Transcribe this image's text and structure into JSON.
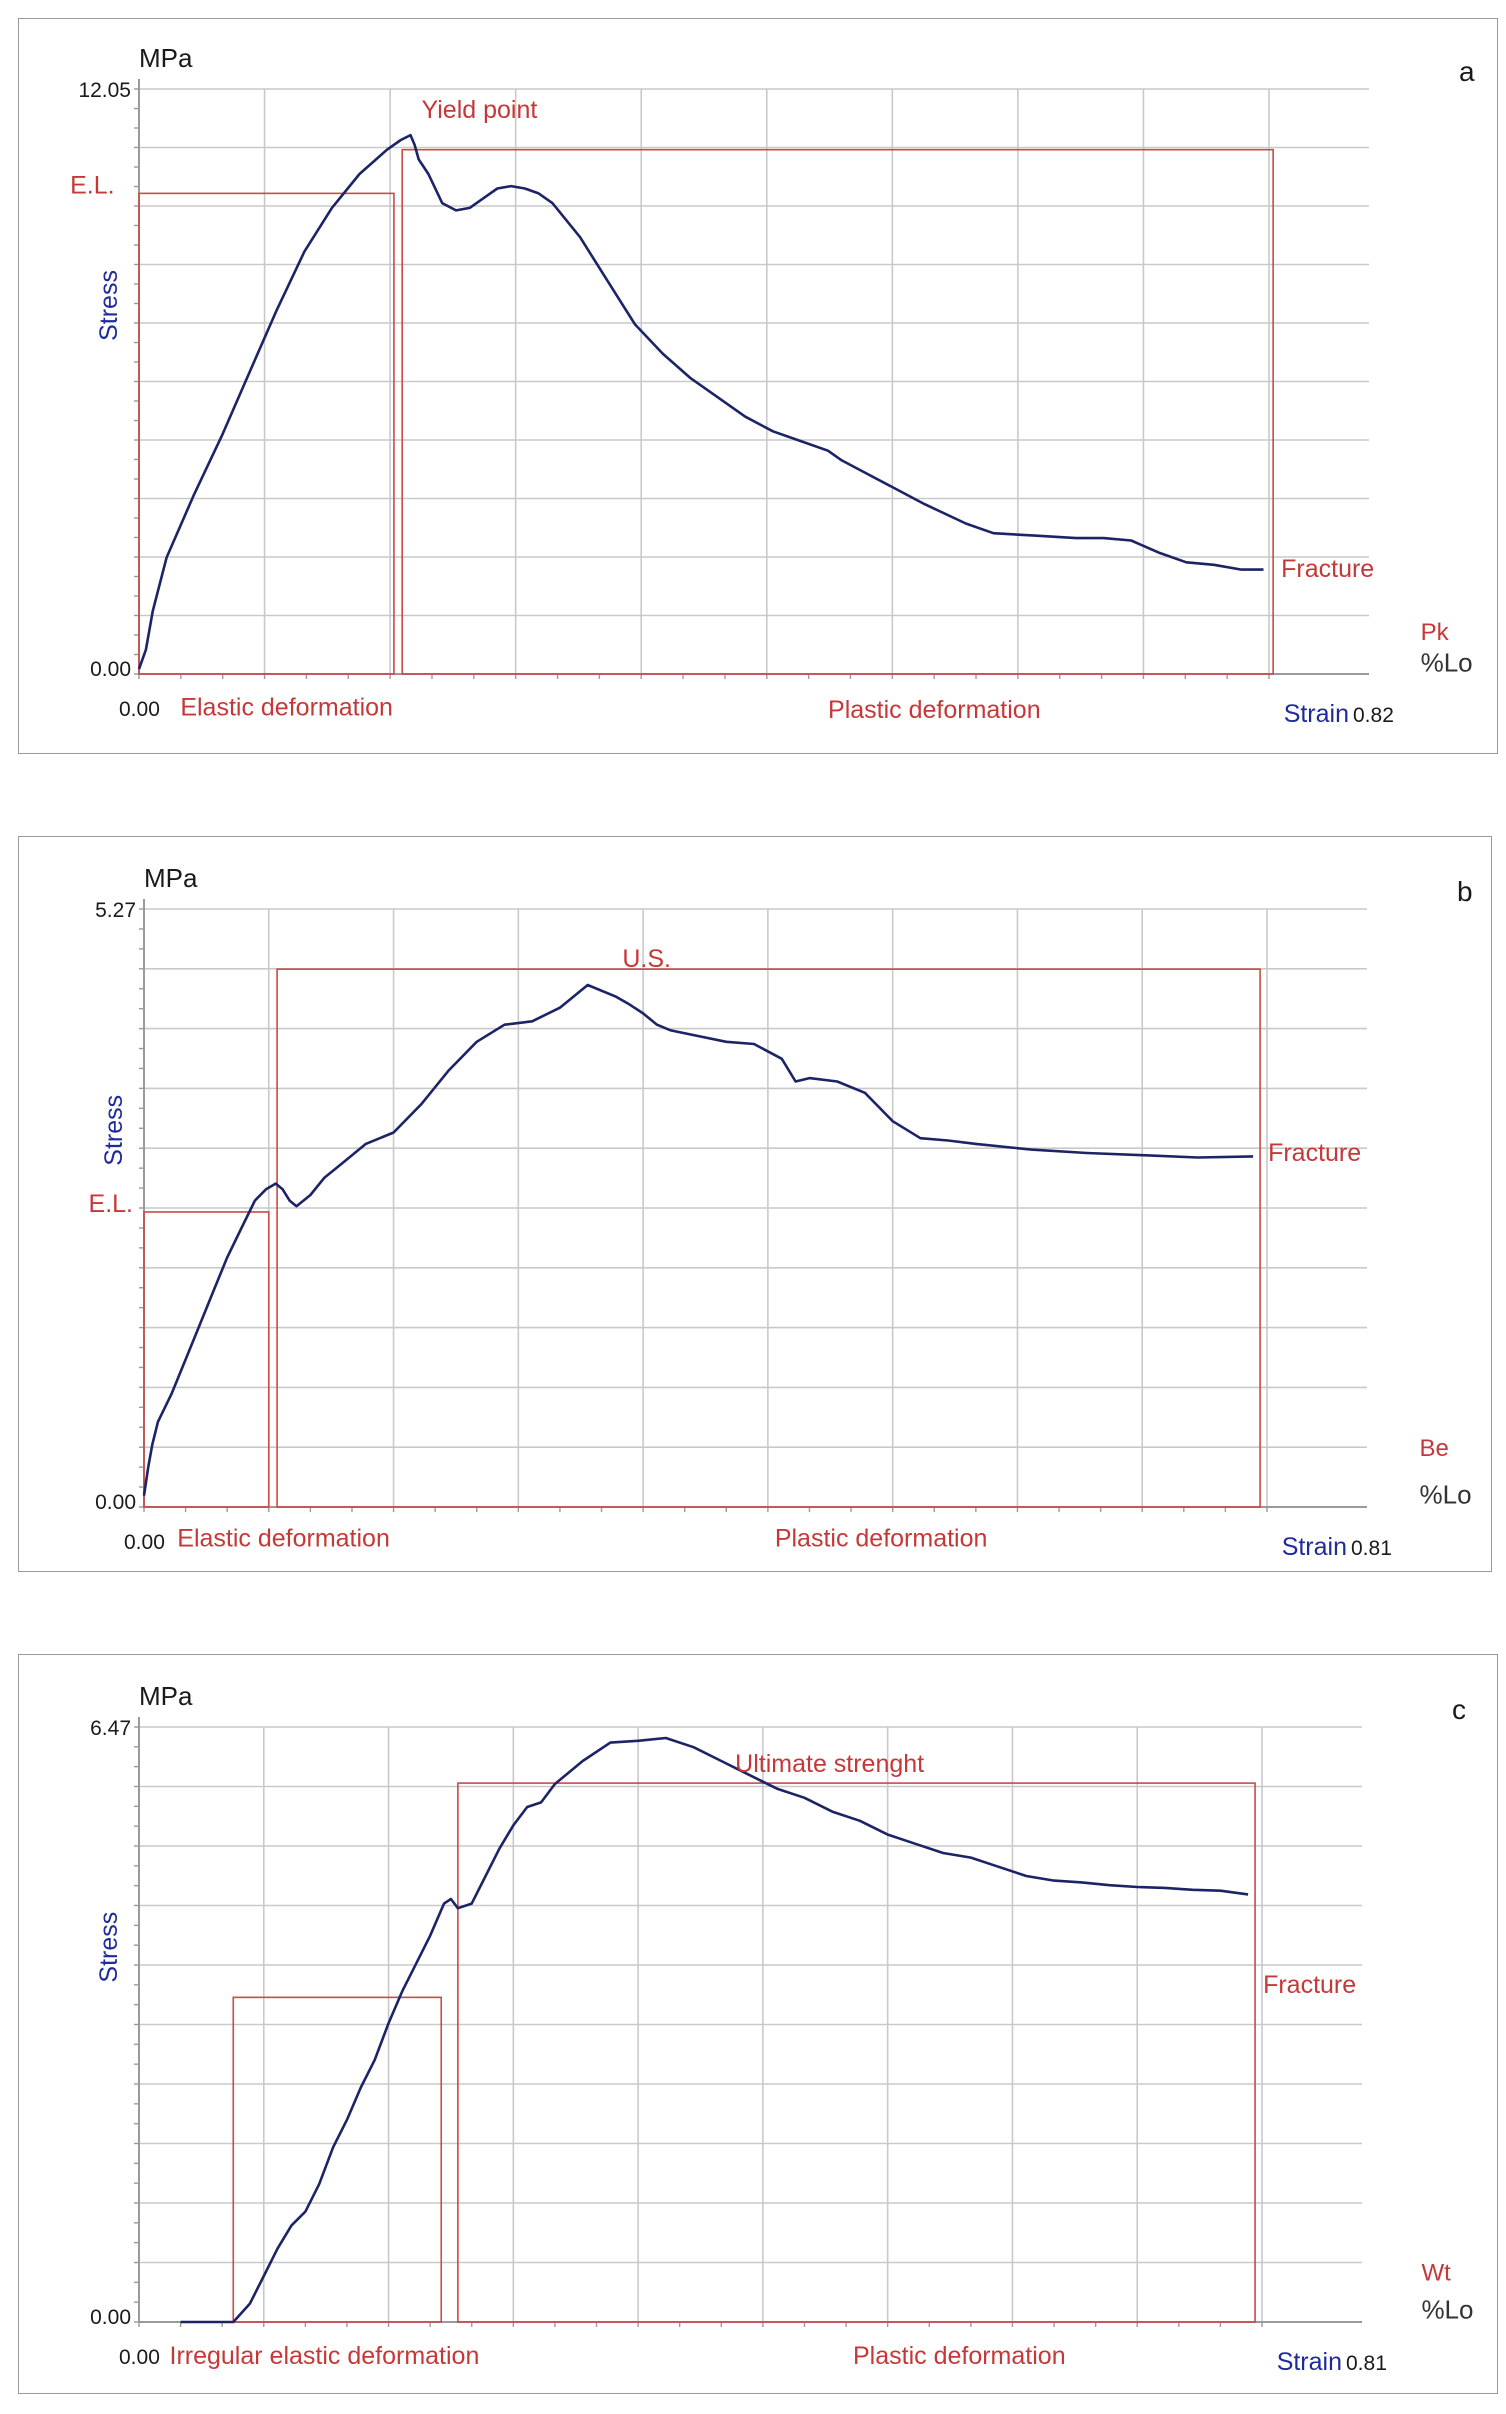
{
  "chart_data": [
    {
      "type": "line",
      "panel_label": "a",
      "unit_label": "MPa",
      "ylabel": "Stress",
      "xlabel": "Strain",
      "x_unit": "%Lo",
      "ylim": [
        0.0,
        12.05
      ],
      "xlim": [
        0.0,
        0.82
      ],
      "y_tick_labels": [
        "12.05",
        "0.00"
      ],
      "x_tick_labels": [
        "0.00",
        "0.82"
      ],
      "specimen_label": "Pk",
      "annotations": {
        "yield": "Yield point",
        "el": "E.L.",
        "fracture": "Fracture",
        "elastic": "Elastic deformation",
        "plastic": "Plastic deformation"
      },
      "regions": [
        {
          "name": "elastic",
          "x": [
            0.0,
            0.185
          ],
          "y": [
            0.0,
            9.9
          ]
        },
        {
          "name": "plastic",
          "x": [
            0.191,
            0.823
          ],
          "y": [
            0.0,
            10.8
          ]
        }
      ],
      "label_points": {
        "el": [
          -0.05,
          9.9
        ],
        "yield": [
          0.205,
          11.45
        ],
        "fracture": [
          0.823,
          2.0
        ],
        "elastic": [
          0.03,
          -0.65
        ],
        "plastic": [
          0.5,
          -0.7
        ],
        "specimen": [
          0.93,
          0.7
        ],
        "unit": [
          0.93,
          0.05
        ]
      },
      "series": [
        {
          "name": "stress-strain",
          "x": [
            0.0,
            0.005,
            0.01,
            0.02,
            0.04,
            0.06,
            0.08,
            0.1,
            0.12,
            0.14,
            0.16,
            0.18,
            0.19,
            0.197,
            0.2,
            0.203,
            0.21,
            0.22,
            0.23,
            0.24,
            0.25,
            0.26,
            0.27,
            0.28,
            0.29,
            0.3,
            0.32,
            0.34,
            0.36,
            0.38,
            0.4,
            0.42,
            0.44,
            0.46,
            0.48,
            0.5,
            0.51,
            0.53,
            0.55,
            0.57,
            0.6,
            0.62,
            0.65,
            0.68,
            0.7,
            0.72,
            0.74,
            0.76,
            0.78,
            0.8,
            0.816
          ],
          "y": [
            0.1,
            0.5,
            1.3,
            2.4,
            3.7,
            4.9,
            6.2,
            7.5,
            8.7,
            9.6,
            10.3,
            10.8,
            11.0,
            11.1,
            10.9,
            10.6,
            10.3,
            9.7,
            9.55,
            9.6,
            9.8,
            10.0,
            10.05,
            10.0,
            9.9,
            9.7,
            9.0,
            8.1,
            7.2,
            6.6,
            6.1,
            5.7,
            5.3,
            5.0,
            4.8,
            4.6,
            4.4,
            4.1,
            3.8,
            3.5,
            3.1,
            2.9,
            2.85,
            2.8,
            2.8,
            2.75,
            2.5,
            2.3,
            2.25,
            2.15,
            2.15
          ]
        }
      ]
    },
    {
      "type": "line",
      "panel_label": "b",
      "unit_label": "MPa",
      "ylabel": "Stress",
      "xlabel": "Strain",
      "x_unit": "%Lo",
      "ylim": [
        0.0,
        5.27
      ],
      "xlim": [
        0.0,
        0.81
      ],
      "y_tick_labels": [
        "5.27",
        "0.00"
      ],
      "x_tick_labels": [
        "0.00",
        "0.81"
      ],
      "specimen_label": "Be",
      "annotations": {
        "us": "U.S.",
        "el": "E.L.",
        "fracture": "Fracture",
        "elastic": "Elastic deformation",
        "plastic": "Plastic deformation"
      },
      "regions": [
        {
          "name": "elastic",
          "x": [
            0.0,
            0.09
          ],
          "y": [
            0.0,
            2.6
          ]
        },
        {
          "name": "plastic",
          "x": [
            0.096,
            0.805
          ],
          "y": [
            0.0,
            4.74
          ]
        }
      ],
      "label_points": {
        "el": [
          -0.04,
          2.6
        ],
        "us": [
          0.345,
          4.76
        ],
        "fracture": [
          0.805,
          3.05
        ],
        "elastic": [
          0.024,
          -0.26
        ],
        "plastic": [
          0.455,
          -0.26
        ],
        "specimen": [
          0.92,
          0.45
        ],
        "unit": [
          0.92,
          0.03
        ]
      },
      "series": [
        {
          "name": "stress-strain",
          "x": [
            0.0,
            0.003,
            0.006,
            0.01,
            0.02,
            0.03,
            0.04,
            0.05,
            0.06,
            0.07,
            0.08,
            0.088,
            0.095,
            0.1,
            0.105,
            0.11,
            0.12,
            0.13,
            0.14,
            0.15,
            0.16,
            0.18,
            0.2,
            0.22,
            0.24,
            0.26,
            0.28,
            0.3,
            0.31,
            0.32,
            0.34,
            0.35,
            0.36,
            0.37,
            0.38,
            0.4,
            0.42,
            0.44,
            0.46,
            0.47,
            0.48,
            0.5,
            0.52,
            0.54,
            0.56,
            0.58,
            0.6,
            0.64,
            0.68,
            0.72,
            0.76,
            0.8
          ],
          "y": [
            0.1,
            0.35,
            0.55,
            0.75,
            1.0,
            1.3,
            1.6,
            1.9,
            2.2,
            2.45,
            2.7,
            2.8,
            2.85,
            2.8,
            2.7,
            2.65,
            2.75,
            2.9,
            3.0,
            3.1,
            3.2,
            3.3,
            3.55,
            3.85,
            4.1,
            4.25,
            4.28,
            4.4,
            4.5,
            4.6,
            4.5,
            4.43,
            4.35,
            4.25,
            4.2,
            4.15,
            4.1,
            4.08,
            3.95,
            3.75,
            3.78,
            3.75,
            3.65,
            3.4,
            3.25,
            3.23,
            3.2,
            3.15,
            3.12,
            3.1,
            3.08,
            3.09
          ]
        }
      ]
    },
    {
      "type": "line",
      "panel_label": "c",
      "unit_label": "MPa",
      "ylabel": "Stress",
      "xlabel": "Strain",
      "x_unit": "%Lo",
      "ylim": [
        0.0,
        6.47
      ],
      "xlim": [
        0.0,
        0.81
      ],
      "y_tick_labels": [
        "6.47",
        "0.00"
      ],
      "x_tick_labels": [
        "0.00",
        "0.81"
      ],
      "specimen_label": "Wt",
      "annotations": {
        "us": "Ultimate strenght",
        "fracture": "Fracture",
        "elastic": "Irregular elastic deformation",
        "plastic": "Plastic deformation"
      },
      "regions": [
        {
          "name": "elastic",
          "x": [
            0.068,
            0.218
          ],
          "y": [
            0.0,
            3.53
          ]
        },
        {
          "name": "plastic",
          "x": [
            0.23,
            0.805
          ],
          "y": [
            0.0,
            5.86
          ]
        }
      ],
      "label_points": {
        "us": [
          0.43,
          5.98
        ],
        "fracture": [
          0.805,
          3.58
        ],
        "elastic": [
          0.022,
          -0.35
        ],
        "plastic": [
          0.515,
          -0.35
        ],
        "specimen": [
          0.925,
          0.45
        ],
        "unit": [
          0.925,
          0.04
        ]
      },
      "series": [
        {
          "name": "stress-strain",
          "x": [
            0.03,
            0.05,
            0.068,
            0.08,
            0.09,
            0.1,
            0.11,
            0.12,
            0.13,
            0.14,
            0.15,
            0.16,
            0.17,
            0.18,
            0.19,
            0.2,
            0.21,
            0.22,
            0.225,
            0.23,
            0.24,
            0.25,
            0.26,
            0.27,
            0.28,
            0.29,
            0.3,
            0.32,
            0.34,
            0.36,
            0.38,
            0.4,
            0.42,
            0.44,
            0.46,
            0.48,
            0.5,
            0.52,
            0.54,
            0.56,
            0.58,
            0.6,
            0.62,
            0.64,
            0.66,
            0.68,
            0.7,
            0.72,
            0.74,
            0.76,
            0.78,
            0.8
          ],
          "y": [
            0.0,
            0.0,
            0.0,
            0.2,
            0.5,
            0.8,
            1.05,
            1.2,
            1.5,
            1.9,
            2.2,
            2.55,
            2.85,
            3.25,
            3.6,
            3.9,
            4.2,
            4.55,
            4.6,
            4.5,
            4.55,
            4.85,
            5.15,
            5.4,
            5.6,
            5.65,
            5.85,
            6.1,
            6.3,
            6.32,
            6.35,
            6.25,
            6.1,
            5.95,
            5.8,
            5.7,
            5.55,
            5.45,
            5.3,
            5.2,
            5.1,
            5.05,
            4.95,
            4.85,
            4.8,
            4.78,
            4.75,
            4.73,
            4.72,
            4.7,
            4.69,
            4.65
          ]
        }
      ]
    }
  ]
}
